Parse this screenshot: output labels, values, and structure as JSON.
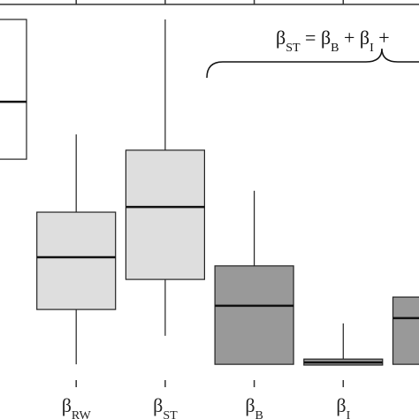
{
  "chart_data": {
    "type": "boxplot",
    "categories": [
      null,
      {
        "symbol": "β",
        "subscript": "RW"
      },
      {
        "symbol": "β",
        "subscript": "ST"
      },
      {
        "symbol": "β",
        "subscript": "B"
      },
      {
        "symbol": "β",
        "subscript": "I"
      },
      null
    ],
    "whisker_low": [
      null,
      4.2,
      11.8,
      4.2,
      4.0,
      null
    ],
    "q1": [
      58.8,
      18.8,
      26.8,
      4.2,
      4.0,
      4.2
    ],
    "median": [
      74.1,
      32.7,
      46.1,
      19.8,
      4.7,
      16.5
    ],
    "q3": [
      96,
      44.7,
      61.2,
      30.4,
      5.6,
      22.1
    ],
    "whisker_high": [
      null,
      65.4,
      96,
      50.4,
      15.1,
      null
    ],
    "colors": [
      "#ffffff",
      "#dedede",
      "#dedede",
      "#999999",
      "#999999",
      "#999999"
    ],
    "ylim": [
      0,
      100
    ],
    "annotation": [
      {
        "text": "β"
      },
      {
        "text": "ST",
        "sub": true
      },
      {
        "text": " = β"
      },
      {
        "text": "B",
        "sub": true
      },
      {
        "text": " + β"
      },
      {
        "text": "I",
        "sub": true
      },
      {
        "text": " +"
      }
    ]
  }
}
